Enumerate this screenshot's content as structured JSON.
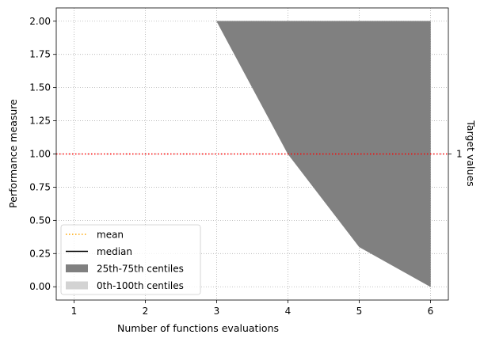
{
  "colors": {
    "background": "#ffffff",
    "grid": "#b0b0b0",
    "band_25_75": "#808080",
    "band_0_100": "#d3d3d3",
    "mean": "#ffa500",
    "median": "#000000",
    "target": "#ff0000",
    "axis": "#000000"
  },
  "chart_data": {
    "type": "area",
    "xlabel": "Number of functions evaluations",
    "ylabel": "Performance measure",
    "ylabel_right": "Target values",
    "xlim": [
      0.75,
      6.25
    ],
    "ylim": [
      -0.1,
      2.1
    ],
    "x_ticks": [
      1,
      2,
      3,
      4,
      5,
      6
    ],
    "x_tick_labels": [
      "1",
      "2",
      "3",
      "4",
      "5",
      "6"
    ],
    "y_ticks": [
      0.0,
      0.25,
      0.5,
      0.75,
      1.0,
      1.25,
      1.5,
      1.75,
      2.0
    ],
    "y_tick_labels": [
      "0.00",
      "0.25",
      "0.50",
      "0.75",
      "1.00",
      "1.25",
      "1.50",
      "1.75",
      "2.00"
    ],
    "right_ticks": [
      1
    ],
    "right_tick_labels": [
      "1"
    ],
    "grid": true,
    "legend_position": "bottom-left",
    "legend": [
      {
        "label": "mean",
        "style": "dotted-line",
        "color": "#ffa500"
      },
      {
        "label": "median",
        "style": "solid-line",
        "color": "#000000"
      },
      {
        "label": "25th-75th centiles",
        "style": "patch",
        "color": "#808080"
      },
      {
        "label": "0th-100th centiles",
        "style": "patch",
        "color": "#d3d3d3"
      }
    ],
    "target_line": {
      "y": 1.0,
      "style": "dotted",
      "color": "#ff0000"
    },
    "series": [
      {
        "kind": "band",
        "x": [
          3,
          4,
          5,
          6
        ],
        "lower": [
          2.0,
          1.0,
          0.3,
          0.0
        ],
        "upper": [
          2.0,
          2.0,
          2.0,
          2.0
        ],
        "color": "#808080"
      }
    ]
  }
}
